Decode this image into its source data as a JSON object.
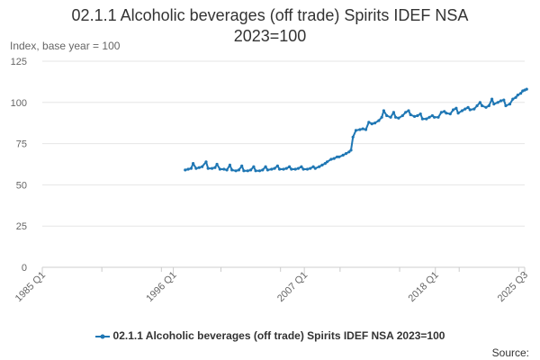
{
  "chart_data": {
    "type": "line",
    "title": [
      "02.1.1 Alcoholic beverages (off trade) Spirits IDEF NSA",
      "2023=100"
    ],
    "ylabel": "Index, base year = 100",
    "xlabel": "",
    "x_tick_labels": [
      "1985 Q1",
      "1996 Q1",
      "2007 Q1",
      "2018 Q1",
      "2025 Q3"
    ],
    "y_ticks": [
      0,
      25,
      50,
      75,
      100,
      125
    ],
    "ylim": [
      0,
      125
    ],
    "grid": "horizontal",
    "legend_position": "bottom",
    "series": [
      {
        "name": "02.1.1 Alcoholic beverages (off trade) Spirits IDEF NSA 2023=100",
        "color": "#1f77b4",
        "frequency": "monthly",
        "points": [
          [
            "1997-01",
            59
          ],
          [
            "1997-04",
            59.5
          ],
          [
            "1997-07",
            60
          ],
          [
            "1997-09",
            63
          ],
          [
            "1997-12",
            60
          ],
          [
            "1998-03",
            60.5
          ],
          [
            "1998-06",
            61
          ],
          [
            "1998-10",
            64
          ],
          [
            "1998-12",
            60
          ],
          [
            "1999-04",
            60
          ],
          [
            "1999-07",
            60.5
          ],
          [
            "1999-09",
            62.5
          ],
          [
            "1999-12",
            59.5
          ],
          [
            "2000-04",
            59.5
          ],
          [
            "2000-07",
            59
          ],
          [
            "2000-10",
            62
          ],
          [
            "2000-12",
            59
          ],
          [
            "2001-04",
            58.5
          ],
          [
            "2001-07",
            59
          ],
          [
            "2001-10",
            61.5
          ],
          [
            "2001-12",
            58.5
          ],
          [
            "2002-04",
            58.5
          ],
          [
            "2002-07",
            59
          ],
          [
            "2002-10",
            61
          ],
          [
            "2002-12",
            58.5
          ],
          [
            "2003-04",
            58.5
          ],
          [
            "2003-07",
            59
          ],
          [
            "2003-10",
            61
          ],
          [
            "2003-12",
            59
          ],
          [
            "2004-04",
            59.5
          ],
          [
            "2004-07",
            60
          ],
          [
            "2004-10",
            61.5
          ],
          [
            "2004-12",
            59.5
          ],
          [
            "2005-04",
            59.5
          ],
          [
            "2005-07",
            60
          ],
          [
            "2005-10",
            61
          ],
          [
            "2005-12",
            59.5
          ],
          [
            "2006-04",
            59.5
          ],
          [
            "2006-07",
            60
          ],
          [
            "2006-10",
            61
          ],
          [
            "2006-12",
            59.5
          ],
          [
            "2007-04",
            59.5
          ],
          [
            "2007-07",
            60
          ],
          [
            "2007-10",
            61
          ],
          [
            "2007-12",
            60
          ],
          [
            "2008-04",
            61
          ],
          [
            "2008-07",
            62
          ],
          [
            "2008-10",
            63
          ],
          [
            "2008-12",
            64
          ],
          [
            "2009-04",
            65.5
          ],
          [
            "2009-07",
            66
          ],
          [
            "2009-10",
            67
          ],
          [
            "2009-12",
            67
          ],
          [
            "2010-04",
            68
          ],
          [
            "2010-07",
            69
          ],
          [
            "2010-10",
            70
          ],
          [
            "2010-12",
            71
          ],
          [
            "2011-02",
            79
          ],
          [
            "2011-05",
            83
          ],
          [
            "2011-09",
            83.5
          ],
          [
            "2011-12",
            84
          ],
          [
            "2012-03",
            83.5
          ],
          [
            "2012-06",
            88
          ],
          [
            "2012-09",
            87
          ],
          [
            "2012-12",
            87.5
          ],
          [
            "2013-04",
            89
          ],
          [
            "2013-07",
            91
          ],
          [
            "2013-09",
            95
          ],
          [
            "2013-12",
            92
          ],
          [
            "2014-04",
            91
          ],
          [
            "2014-07",
            94
          ],
          [
            "2014-09",
            91
          ],
          [
            "2014-12",
            90.5
          ],
          [
            "2015-04",
            92
          ],
          [
            "2015-07",
            94
          ],
          [
            "2015-10",
            95
          ],
          [
            "2015-12",
            92.5
          ],
          [
            "2016-04",
            91.5
          ],
          [
            "2016-07",
            92
          ],
          [
            "2016-10",
            93
          ],
          [
            "2016-12",
            90
          ],
          [
            "2017-04",
            90
          ],
          [
            "2017-07",
            91
          ],
          [
            "2017-10",
            92
          ],
          [
            "2017-12",
            91
          ],
          [
            "2018-04",
            91
          ],
          [
            "2018-07",
            94
          ],
          [
            "2018-10",
            94.5
          ],
          [
            "2018-12",
            93.5
          ],
          [
            "2019-04",
            93
          ],
          [
            "2019-07",
            95.5
          ],
          [
            "2019-10",
            96.5
          ],
          [
            "2019-12",
            93.5
          ],
          [
            "2020-04",
            95
          ],
          [
            "2020-07",
            96
          ],
          [
            "2020-10",
            97
          ],
          [
            "2020-12",
            95.5
          ],
          [
            "2021-04",
            96
          ],
          [
            "2021-07",
            98
          ],
          [
            "2021-10",
            100
          ],
          [
            "2021-12",
            98
          ],
          [
            "2022-04",
            97
          ],
          [
            "2022-07",
            98
          ],
          [
            "2022-10",
            102
          ],
          [
            "2022-12",
            99
          ],
          [
            "2023-04",
            100
          ],
          [
            "2023-07",
            101
          ],
          [
            "2023-10",
            101.5
          ],
          [
            "2023-12",
            98
          ],
          [
            "2024-04",
            99
          ],
          [
            "2024-07",
            102
          ],
          [
            "2024-10",
            103
          ],
          [
            "2024-12",
            104.5
          ],
          [
            "2025-03",
            105.5
          ],
          [
            "2025-05",
            107
          ],
          [
            "2025-07",
            107.5
          ],
          [
            "2025-09",
            108
          ]
        ]
      }
    ]
  },
  "source_label": "Source:"
}
